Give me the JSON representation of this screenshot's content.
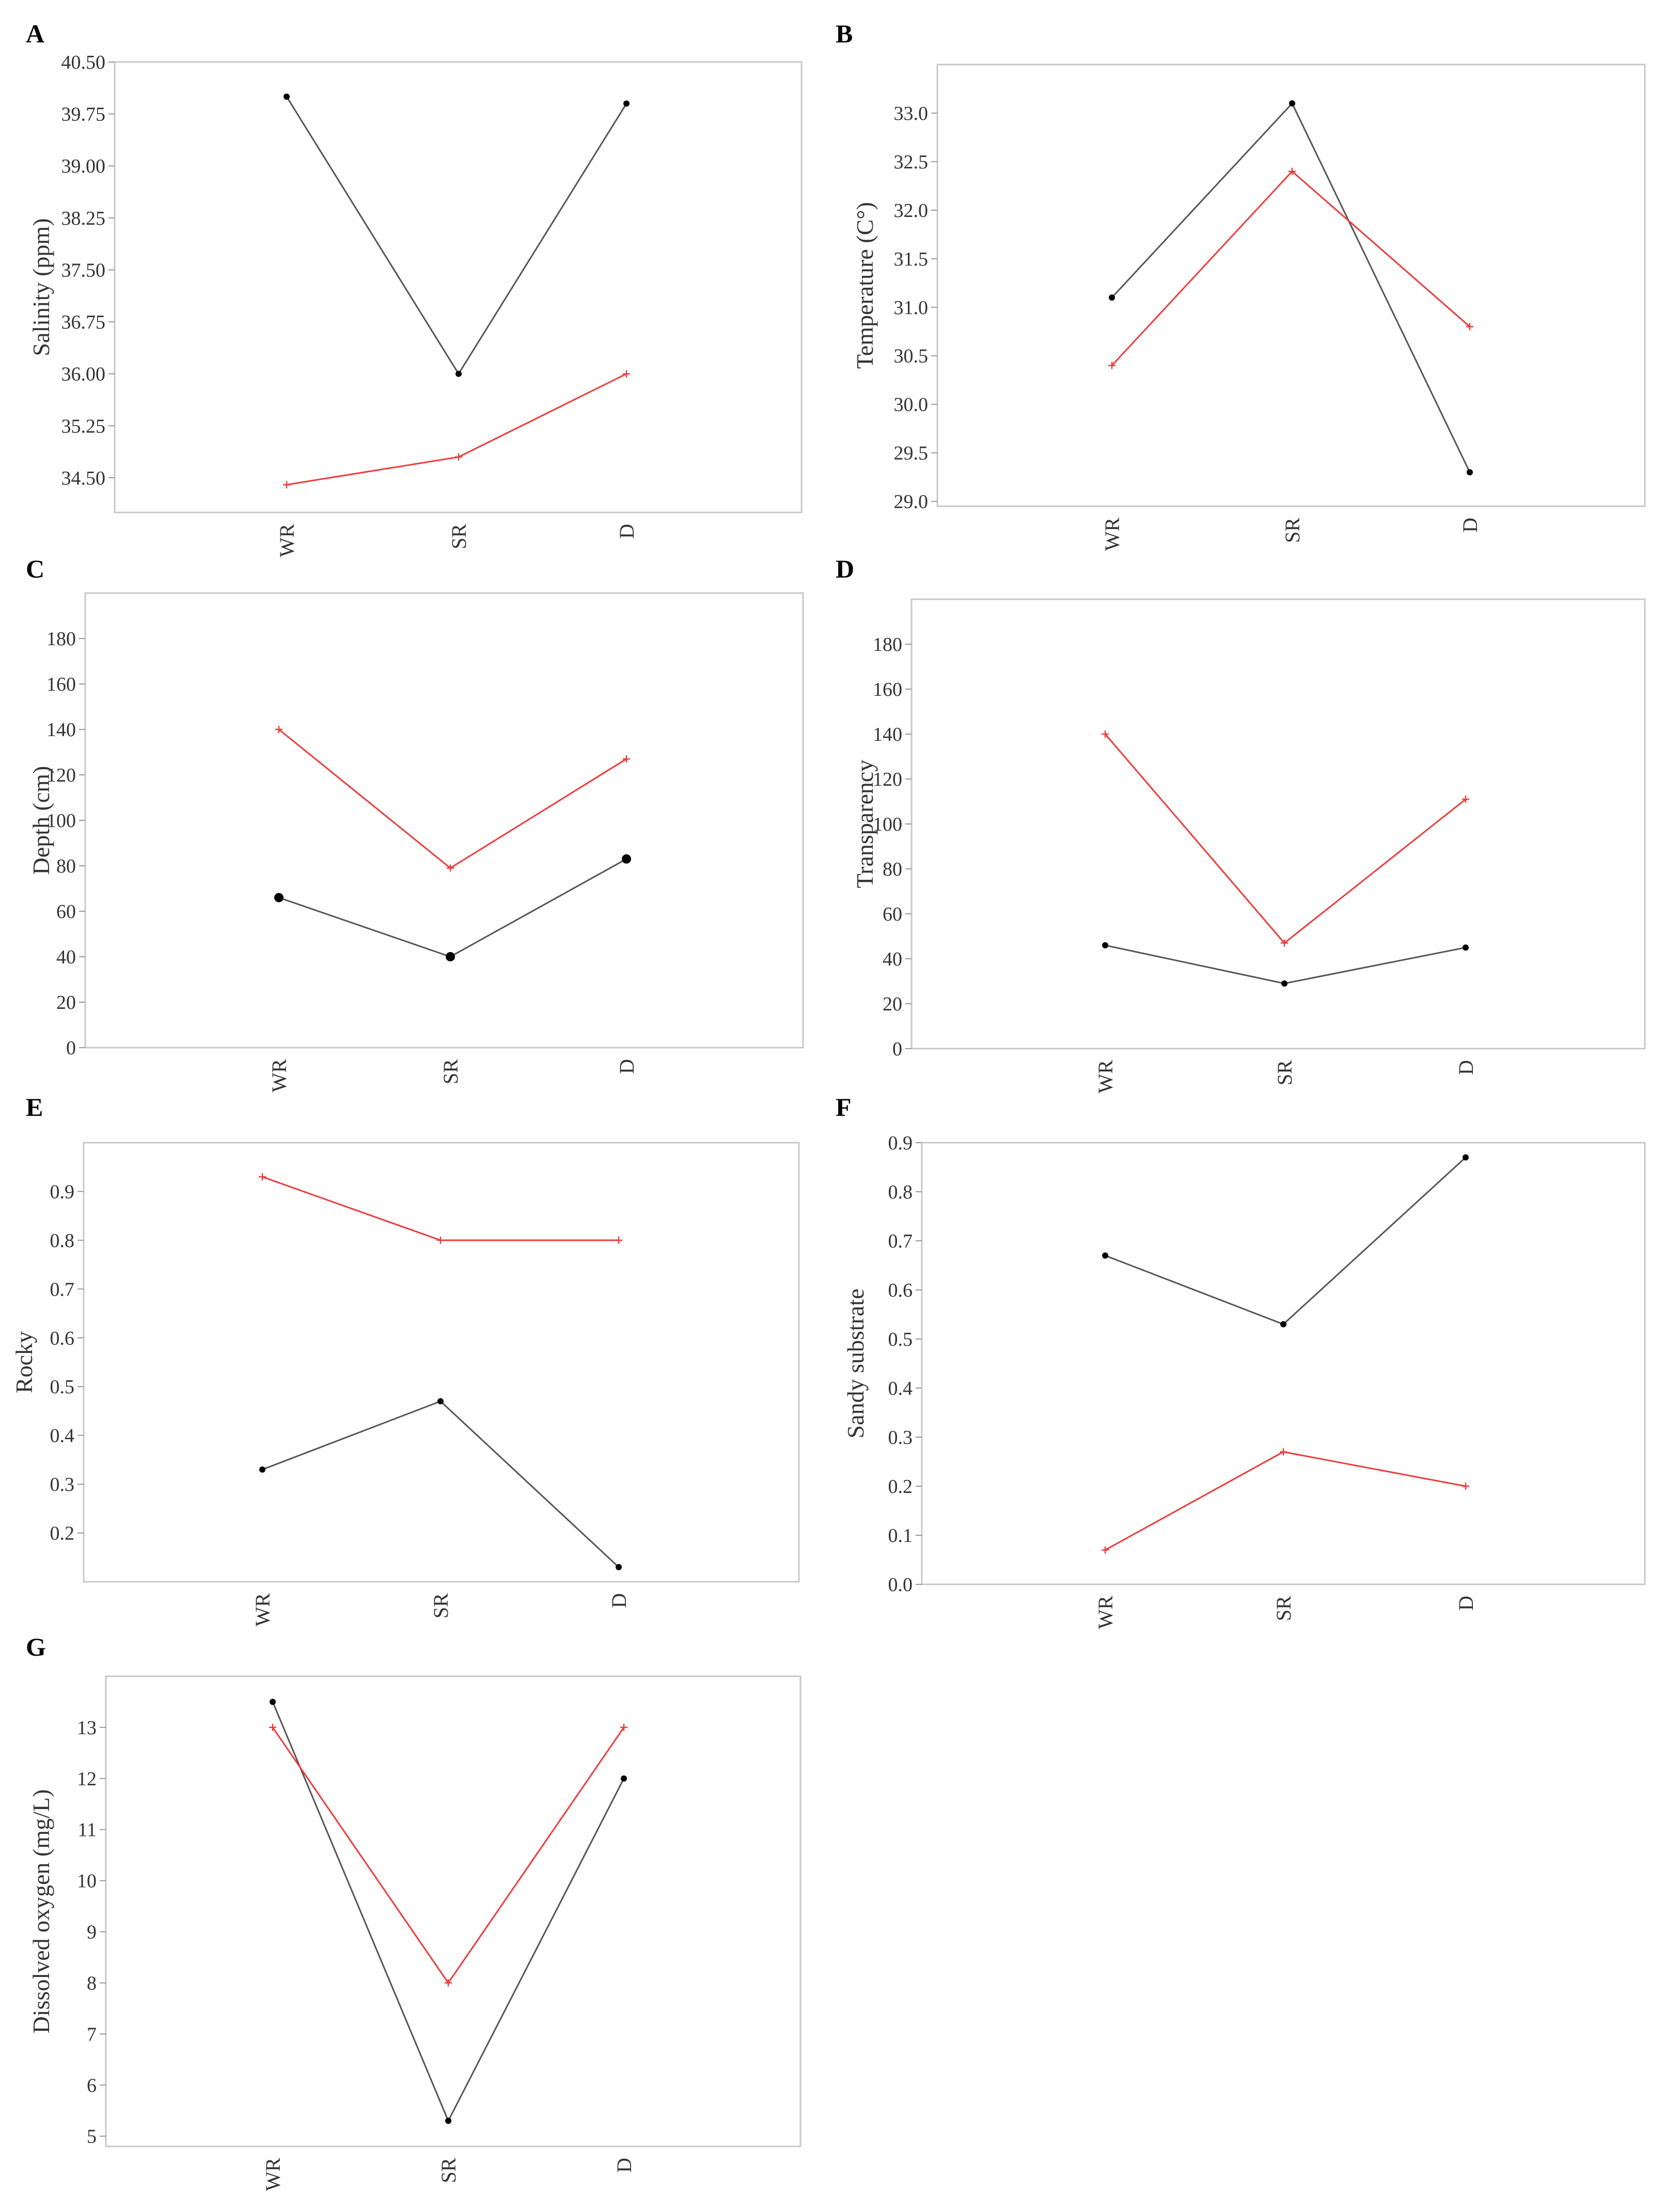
{
  "colors": {
    "series1": "#555555",
    "series2": "#ee3b3b",
    "series1_marker": "#000000"
  },
  "chart_data": [
    {
      "panel": "A",
      "type": "line",
      "categories": [
        "WR",
        "SR",
        "D"
      ],
      "ylabel": "Salinity (ppm)",
      "ylim": [
        34.0,
        40.5
      ],
      "yticks": [
        34.5,
        35.25,
        36.0,
        36.75,
        37.5,
        38.25,
        39.0,
        39.75,
        40.5
      ],
      "ytick_labels": [
        "34.50",
        "35.25",
        "36.00",
        "36.75",
        "37.50",
        "38.25",
        "39.00",
        "39.75",
        "40.50"
      ],
      "series": [
        {
          "name": "black",
          "values": [
            40.0,
            36.0,
            39.9
          ]
        },
        {
          "name": "red",
          "values": [
            34.4,
            34.8,
            36.0
          ]
        }
      ]
    },
    {
      "panel": "B",
      "type": "line",
      "categories": [
        "WR",
        "SR",
        "D"
      ],
      "ylabel": "Temperature (C°)",
      "ylim": [
        28.95,
        33.5
      ],
      "yticks": [
        29.0,
        29.5,
        30.0,
        30.5,
        31.0,
        31.5,
        32.0,
        32.5,
        33.0
      ],
      "ytick_labels": [
        "29.0",
        "29.5",
        "30.0",
        "30.5",
        "31.0",
        "31.5",
        "32.0",
        "32.5",
        "33.0"
      ],
      "series": [
        {
          "name": "black",
          "values": [
            31.1,
            33.1,
            29.3
          ]
        },
        {
          "name": "red",
          "values": [
            30.4,
            32.4,
            30.8
          ]
        }
      ]
    },
    {
      "panel": "C",
      "type": "line",
      "categories": [
        "WR",
        "SR",
        "D"
      ],
      "ylabel": "Depth (cm)",
      "ylim": [
        0,
        200
      ],
      "yticks": [
        0,
        20,
        40,
        60,
        80,
        100,
        120,
        140,
        160,
        180
      ],
      "ytick_labels": [
        "0",
        "20",
        "40",
        "60",
        "80",
        "100",
        "120",
        "140",
        "160",
        "180"
      ],
      "series": [
        {
          "name": "black",
          "values": [
            66,
            40,
            83
          ]
        },
        {
          "name": "red",
          "values": [
            140,
            79,
            127
          ]
        }
      ]
    },
    {
      "panel": "D",
      "type": "line",
      "categories": [
        "WR",
        "SR",
        "D"
      ],
      "ylabel": "Transparency",
      "ylim": [
        0,
        200
      ],
      "yticks": [
        0,
        20,
        40,
        60,
        80,
        100,
        120,
        140,
        160,
        180
      ],
      "ytick_labels": [
        "0",
        "20",
        "40",
        "60",
        "80",
        "100",
        "120",
        "140",
        "160",
        "180"
      ],
      "series": [
        {
          "name": "black",
          "values": [
            46,
            29,
            45
          ]
        },
        {
          "name": "red",
          "values": [
            140,
            47,
            111
          ]
        }
      ]
    },
    {
      "panel": "E",
      "type": "line",
      "categories": [
        "WR",
        "SR",
        "D"
      ],
      "ylabel": "Rocky",
      "ylim": [
        0.1,
        1.0
      ],
      "yticks": [
        0.2,
        0.3,
        0.4,
        0.5,
        0.6,
        0.7,
        0.8,
        0.9
      ],
      "ytick_labels": [
        "0.2",
        "0.3",
        "0.4",
        "0.5",
        "0.6",
        "0.7",
        "0.8",
        "0.9"
      ],
      "series": [
        {
          "name": "black",
          "values": [
            0.33,
            0.47,
            0.13
          ]
        },
        {
          "name": "red",
          "values": [
            0.93,
            0.8,
            0.8
          ]
        }
      ]
    },
    {
      "panel": "F",
      "type": "line",
      "categories": [
        "WR",
        "SR",
        "D"
      ],
      "ylabel": "Sandy substrate",
      "ylim": [
        0.0,
        0.9
      ],
      "yticks": [
        0.0,
        0.1,
        0.2,
        0.3,
        0.4,
        0.5,
        0.6,
        0.7,
        0.8,
        0.9
      ],
      "ytick_labels": [
        "0.0",
        "0.1",
        "0.2",
        "0.3",
        "0.4",
        "0.5",
        "0.6",
        "0.7",
        "0.8",
        "0.9"
      ],
      "series": [
        {
          "name": "black",
          "values": [
            0.67,
            0.53,
            0.87
          ]
        },
        {
          "name": "red",
          "values": [
            0.07,
            0.27,
            0.2
          ]
        }
      ]
    },
    {
      "panel": "G",
      "type": "line",
      "categories": [
        "WR",
        "SR",
        "D"
      ],
      "ylabel": "Dissolved oxygen (mg/L)",
      "ylim": [
        4.8,
        14.0
      ],
      "yticks": [
        5,
        6,
        7,
        8,
        9,
        10,
        11,
        12,
        13
      ],
      "ytick_labels": [
        "5",
        "6",
        "7",
        "8",
        "9",
        "10",
        "11",
        "12",
        "13"
      ],
      "series": [
        {
          "name": "black",
          "values": [
            13.5,
            5.3,
            12.0
          ]
        },
        {
          "name": "red",
          "values": [
            13.0,
            8.0,
            13.0
          ]
        }
      ]
    }
  ]
}
